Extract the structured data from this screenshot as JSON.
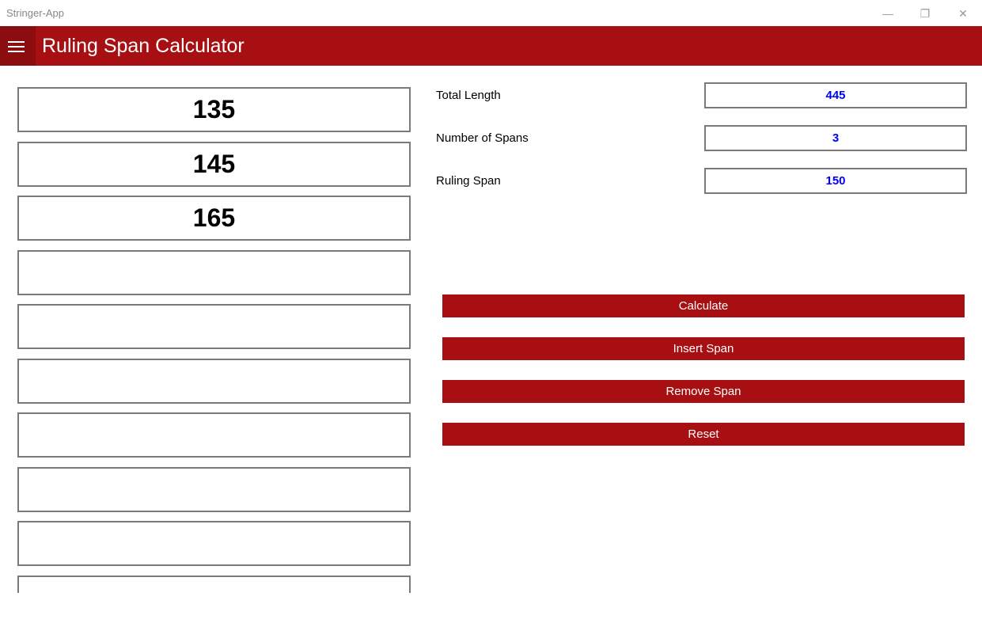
{
  "window": {
    "title": "Stringer-App",
    "minimize_icon": "minimize-icon",
    "restore_icon": "restore-icon",
    "close_icon": "close-icon"
  },
  "header": {
    "title": "Ruling Span Calculator",
    "menu_icon": "hamburger-icon",
    "color": "#A80F12"
  },
  "spans": [
    "135",
    "145",
    "165",
    "",
    "",
    "",
    "",
    "",
    "",
    ""
  ],
  "results": {
    "total_length": {
      "label": "Total Length",
      "value": "445"
    },
    "number_of_spans": {
      "label": "Number of Spans",
      "value": "3"
    },
    "ruling_span": {
      "label": "Ruling Span",
      "value": "150"
    }
  },
  "buttons": {
    "calculate": "Calculate",
    "insert": "Insert Span",
    "remove": "Remove Span",
    "reset": "Reset"
  }
}
